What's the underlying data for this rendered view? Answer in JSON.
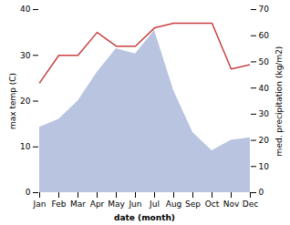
{
  "chart_data": {
    "type": "line",
    "xlabel": "date (month)",
    "ylabel": "max temp (C)",
    "y2label": "med. precipitation (kg/m2)",
    "categories": [
      "Jan",
      "Feb",
      "Mar",
      "Apr",
      "May",
      "Jun",
      "Jul",
      "Aug",
      "Sep",
      "Oct",
      "Nov",
      "Dec"
    ],
    "series": [
      {
        "type": "area",
        "axis": "y2",
        "color": "#b8c4e0",
        "values": [
          25,
          28,
          35,
          46,
          55,
          53,
          62,
          39,
          23,
          16,
          20,
          21
        ]
      },
      {
        "type": "line",
        "color": "#c94040",
        "values": [
          24,
          30,
          30,
          35,
          32,
          32,
          36,
          37,
          37,
          37,
          27,
          28
        ]
      }
    ],
    "ylim": [
      0,
      40
    ],
    "yticks": [
      0,
      10,
      20,
      30,
      40
    ],
    "y2lim": [
      0,
      70
    ],
    "y2ticks": [
      0,
      10,
      20,
      30,
      40,
      50,
      60,
      70
    ],
    "grid": false
  }
}
